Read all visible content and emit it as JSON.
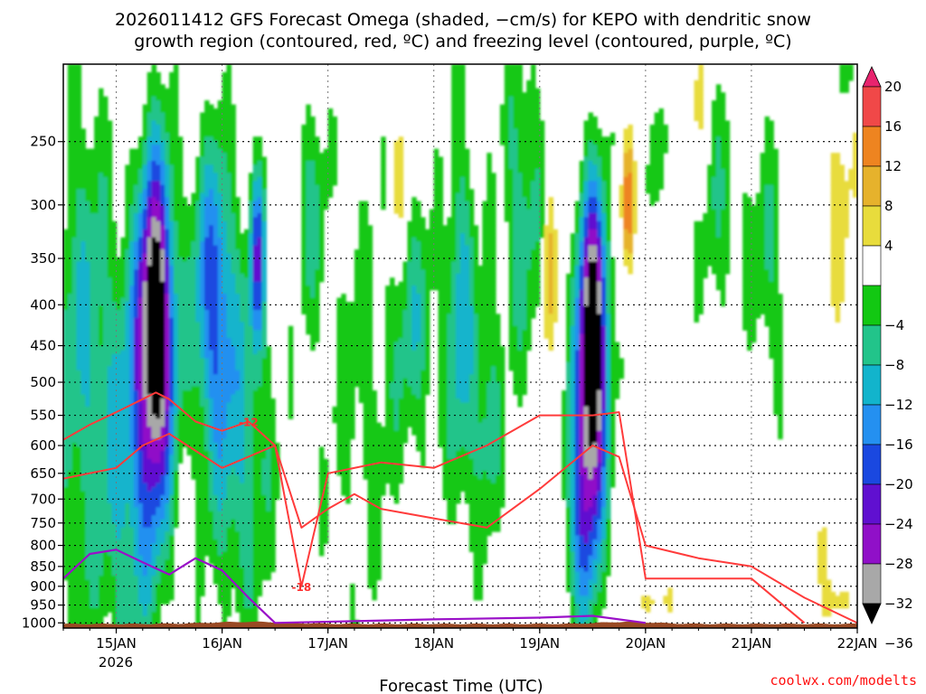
{
  "title_line1": "2026011412 GFS Forecast Omega (shaded, −cm/s) for KEPO with dendritic snow",
  "title_line2": "growth region (contoured, red, ºC) and freezing level (contoured, purple, ºC)",
  "xlabel": "Forecast Time (UTC)",
  "credit": "coolwx.com/modelts",
  "colors": {
    "dgz_contour": "#ff3b3b",
    "freezing_contour": "#9a10c8",
    "terrain": "#9a4a24",
    "grid": "#000000"
  },
  "chart_data": {
    "type": "heatmap",
    "title": "2026011412 GFS Forecast Omega (shaded, −cm/s) for KEPO with dendritic snow growth region (contoured, red, ºC) and freezing level (contoured, purple, ºC)",
    "xlabel": "Forecast Time (UTC)",
    "ylabel": "",
    "y_axis": {
      "unit": "hPa",
      "scale": "log",
      "inverted": true,
      "range": [
        1015,
        200
      ],
      "ticks": [
        "250",
        "300",
        "350",
        "400",
        "450",
        "500",
        "550",
        "600",
        "650",
        "700",
        "750",
        "800",
        "850",
        "900",
        "950",
        "1000"
      ]
    },
    "x_axis": {
      "range": [
        "2026-01-14 12:00",
        "2026-01-22 00:00"
      ],
      "ticks": [
        "15JAN",
        "16JAN",
        "17JAN",
        "18JAN",
        "19JAN",
        "20JAN",
        "21JAN",
        "22JAN"
      ],
      "sub_label": "2026"
    },
    "grid": true,
    "colorbar": {
      "ticks": [
        "20",
        "16",
        "12",
        "8",
        "4",
        "−4",
        "−8",
        "−12",
        "−16",
        "−20",
        "−24",
        "−28",
        "−32",
        "−36"
      ],
      "levels": [
        {
          "from": 20,
          "to": null,
          "color": "#e8246e"
        },
        {
          "from": 16,
          "to": 20,
          "color": "#f04848"
        },
        {
          "from": 12,
          "to": 16,
          "color": "#ee8420"
        },
        {
          "from": 8,
          "to": 12,
          "color": "#e6b22c"
        },
        {
          "from": 4,
          "to": 8,
          "color": "#e8dc3c"
        },
        {
          "from": -4,
          "to": 4,
          "color": "#ffffff"
        },
        {
          "from": -8,
          "to": -4,
          "color": "#12c812"
        },
        {
          "from": -12,
          "to": -8,
          "color": "#22c48a"
        },
        {
          "from": -16,
          "to": -12,
          "color": "#12b4cc"
        },
        {
          "from": -20,
          "to": -16,
          "color": "#2490f0"
        },
        {
          "from": -24,
          "to": -20,
          "color": "#1a48e0"
        },
        {
          "from": -28,
          "to": -24,
          "color": "#6010d0"
        },
        {
          "from": -32,
          "to": -28,
          "color": "#9010c8"
        },
        {
          "from": -36,
          "to": -32,
          "color": "#a8a8a8"
        },
        {
          "from": null,
          "to": -36,
          "color": "#000000"
        }
      ]
    },
    "omega_features": [
      {
        "time_center": "2026-01-15 09:00",
        "p_top": 280,
        "p_bottom": 980,
        "min_value": -40,
        "desc_range": [
          -40,
          -4
        ]
      },
      {
        "time_center": "2026-01-19 12:00",
        "p_top": 220,
        "p_bottom": 960,
        "min_value": -40,
        "desc_range": [
          -40,
          -4
        ]
      }
    ],
    "dgz_contours": [
      {
        "label": "-12",
        "points": [
          [
            "2026-01-14 12:00",
            590
          ],
          [
            "2026-01-14 18:00",
            565
          ],
          [
            "2026-01-15 00:00",
            545
          ],
          [
            "2026-01-15 06:00",
            525
          ],
          [
            "2026-01-15 09:00",
            515
          ],
          [
            "2026-01-15 12:00",
            525
          ],
          [
            "2026-01-15 18:00",
            560
          ],
          [
            "2026-01-16 00:00",
            575
          ],
          [
            "2026-01-16 06:00",
            560
          ],
          [
            "2026-01-16 12:00",
            600
          ],
          [
            "2026-01-16 18:00",
            760
          ],
          [
            "2026-01-17 00:00",
            720
          ],
          [
            "2026-01-17 06:00",
            690
          ],
          [
            "2026-01-17 12:00",
            720
          ],
          [
            "2026-01-18 00:00",
            740
          ],
          [
            "2026-01-18 12:00",
            760
          ],
          [
            "2026-01-19 00:00",
            680
          ],
          [
            "2026-01-19 12:00",
            600
          ],
          [
            "2026-01-19 18:00",
            620
          ],
          [
            "2026-01-20 00:00",
            800
          ],
          [
            "2026-01-20 12:00",
            830
          ],
          [
            "2026-01-21 00:00",
            850
          ],
          [
            "2026-01-21 12:00",
            930
          ],
          [
            "2026-01-22 00:00",
            1000
          ]
        ]
      },
      {
        "label": "-18",
        "points": [
          [
            "2026-01-14 12:00",
            660
          ],
          [
            "2026-01-15 00:00",
            640
          ],
          [
            "2026-01-15 06:00",
            600
          ],
          [
            "2026-01-15 12:00",
            580
          ],
          [
            "2026-01-16 00:00",
            640
          ],
          [
            "2026-01-16 12:00",
            600
          ],
          [
            "2026-01-16 18:00",
            900
          ],
          [
            "2026-01-17 00:00",
            650
          ],
          [
            "2026-01-17 12:00",
            630
          ],
          [
            "2026-01-18 00:00",
            640
          ],
          [
            "2026-01-18 12:00",
            600
          ],
          [
            "2026-01-19 00:00",
            550
          ],
          [
            "2026-01-19 12:00",
            550
          ],
          [
            "2026-01-19 18:00",
            545
          ],
          [
            "2026-01-20 00:00",
            880
          ],
          [
            "2026-01-20 12:00",
            880
          ],
          [
            "2026-01-21 00:00",
            880
          ],
          [
            "2026-01-21 12:00",
            1000
          ]
        ]
      }
    ],
    "freezing_contour": [
      [
        "2026-01-14 12:00",
        880
      ],
      [
        "2026-01-14 18:00",
        820
      ],
      [
        "2026-01-15 00:00",
        810
      ],
      [
        "2026-01-15 06:00",
        840
      ],
      [
        "2026-01-15 12:00",
        870
      ],
      [
        "2026-01-15 18:00",
        830
      ],
      [
        "2026-01-16 00:00",
        860
      ],
      [
        "2026-01-16 06:00",
        930
      ],
      [
        "2026-01-16 12:00",
        1000
      ],
      [
        "2026-01-18 00:00",
        990
      ],
      [
        "2026-01-19 00:00",
        985
      ],
      [
        "2026-01-19 12:00",
        980
      ],
      [
        "2026-01-20 00:00",
        1000
      ]
    ],
    "terrain_top_hPa": 1000
  }
}
